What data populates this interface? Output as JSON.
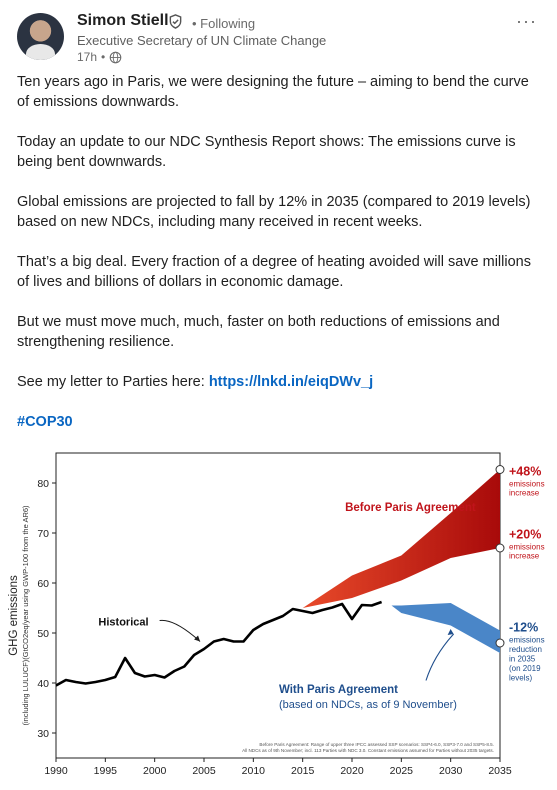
{
  "author": {
    "name": "Simon Stiell",
    "follow_status": "Following",
    "title": "Executive Secretary of UN Climate Change",
    "time": "17h",
    "separator": "•"
  },
  "menu_icon": "ellipsis-icon",
  "post": {
    "p1": "Ten years ago in Paris, we were designing the future – aiming to bend the curve of emissions downwards.",
    "p2": "Today an update to our NDC Synthesis Report shows: The emissions curve is being bent downwards.",
    "p3": "Global emissions are projected to fall by 12% in 2035 (compared to 2019 levels) based on new NDCs, including many received in recent weeks.",
    "p4": "That’s a big deal. Every fraction of a degree of heating avoided will save millions of lives and billions of dollars in economic damage.",
    "p5": "But we must move much, much, faster on both reductions of emissions and strengthening resilience.",
    "p6_text": "See my letter to Parties here: ",
    "p6_link": "https://lnkd.in/eiqDWv_j",
    "hashtag": "#COP30"
  },
  "chart_data": {
    "type": "line",
    "ylabel_main": "GHG emissions",
    "ylabel_sub": "(including LULUCF)(GtCO2eq/year using GWP-100 from the AR6)",
    "xlim": [
      1990,
      2035
    ],
    "ylim": [
      25,
      86
    ],
    "xticks": [
      1990,
      1995,
      2000,
      2005,
      2010,
      2015,
      2020,
      2025,
      2030,
      2035
    ],
    "yticks": [
      30,
      40,
      50,
      60,
      70,
      80
    ],
    "historical": {
      "label": "Historical",
      "x": [
        1990,
        1991,
        1992,
        1993,
        1994,
        1995,
        1996,
        1997,
        1998,
        1999,
        2000,
        2001,
        2002,
        2003,
        2004,
        2005,
        2006,
        2007,
        2008,
        2009,
        2010,
        2011,
        2012,
        2013,
        2014,
        2015,
        2016,
        2017,
        2018,
        2019,
        2020,
        2021,
        2022,
        2023
      ],
      "y": [
        39.5,
        40.6,
        40.2,
        39.9,
        40.2,
        40.6,
        41.2,
        45.0,
        42.0,
        41.3,
        41.6,
        41.1,
        42.4,
        43.3,
        45.6,
        46.8,
        48.3,
        48.8,
        48.3,
        48.3,
        50.6,
        51.8,
        52.6,
        53.4,
        54.8,
        54.4,
        54.0,
        54.6,
        55.1,
        55.8,
        52.8,
        55.6,
        55.5,
        56.2
      ]
    },
    "before_paris": {
      "label": "Before Paris Agreement",
      "x": [
        2015,
        2020,
        2025,
        2030,
        2035
      ],
      "upper": [
        55.0,
        61.5,
        65.5,
        74.0,
        82.7
      ],
      "lower": [
        55.0,
        57.0,
        60.5,
        65.0,
        67.0
      ],
      "upper_pct": "+48%",
      "upper_note": "emissions increase",
      "lower_pct": "+20%",
      "lower_note": "emissions increase"
    },
    "with_paris": {
      "label": "With Paris Agreement",
      "sublabel": "(based on NDCs, as of 9 November)",
      "x": [
        2024,
        2025,
        2030,
        2035
      ],
      "upper": [
        55.5,
        55.5,
        56.0,
        50.5
      ],
      "lower": [
        55.5,
        54.0,
        51.5,
        46.0
      ],
      "pct": "-12%",
      "note": "emissions reduction in 2035 (on 2019 levels)"
    },
    "footnote_1": "Before Paris Agreement: Range of upper three IPCC assessed SSP scenarios: SSP4-6.0, SSP3-7.0 and SSP5-8.5.",
    "footnote_2": "All NDCs as of 9th November; incl. 113 Parties with NDC 3.0. Constant emissions assumed for Parties without 2035 targets.",
    "colors": {
      "before_light": "#e84a2a",
      "before_dark": "#a80a0a",
      "with_band": "#4a86c8",
      "historical": "#000000",
      "arrow_hist": "#1a1a1a",
      "arrow_with": "#1f4e8c",
      "label_red": "#c0141b",
      "label_blue": "#1f4e8c"
    }
  }
}
